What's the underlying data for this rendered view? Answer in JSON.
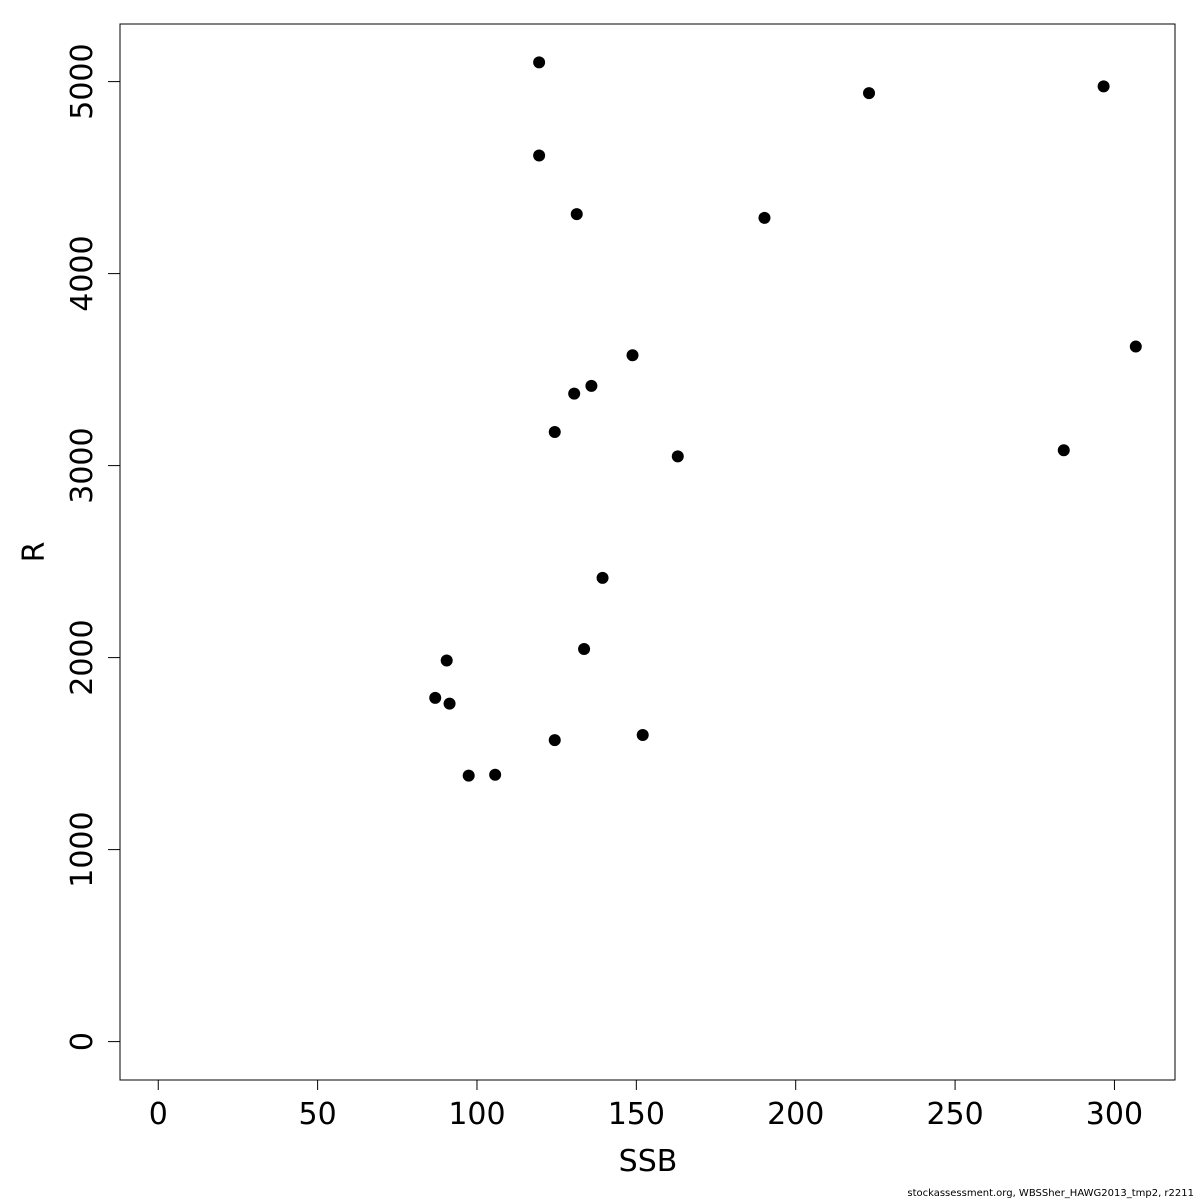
{
  "chart_data": {
    "type": "scatter",
    "title": "",
    "xlabel": "SSB",
    "ylabel": "R",
    "xlim": [
      -12,
      319
    ],
    "ylim": [
      -200,
      5300
    ],
    "xticks": [
      0,
      50,
      100,
      150,
      200,
      250,
      300
    ],
    "yticks": [
      0,
      1000,
      2000,
      3000,
      4000,
      5000
    ],
    "grid": false,
    "marker_color": "#000000",
    "points": [
      {
        "x": 119.5,
        "y": 5100
      },
      {
        "x": 119.5,
        "y": 4615
      },
      {
        "x": 131.3,
        "y": 4310
      },
      {
        "x": 190.2,
        "y": 4290
      },
      {
        "x": 223.0,
        "y": 4940
      },
      {
        "x": 296.6,
        "y": 4975
      },
      {
        "x": 306.7,
        "y": 3620
      },
      {
        "x": 148.8,
        "y": 3575
      },
      {
        "x": 135.9,
        "y": 3415
      },
      {
        "x": 130.5,
        "y": 3375
      },
      {
        "x": 124.4,
        "y": 3175
      },
      {
        "x": 163.0,
        "y": 3048
      },
      {
        "x": 284.1,
        "y": 3080
      },
      {
        "x": 139.4,
        "y": 2415
      },
      {
        "x": 133.6,
        "y": 2045
      },
      {
        "x": 90.5,
        "y": 1985
      },
      {
        "x": 86.9,
        "y": 1790
      },
      {
        "x": 91.4,
        "y": 1760
      },
      {
        "x": 124.4,
        "y": 1570
      },
      {
        "x": 152.0,
        "y": 1597
      },
      {
        "x": 97.4,
        "y": 1385
      },
      {
        "x": 105.7,
        "y": 1390
      }
    ]
  },
  "footer": "stockassessment.org, WBSSher_HAWG2013_tmp2, r2211"
}
